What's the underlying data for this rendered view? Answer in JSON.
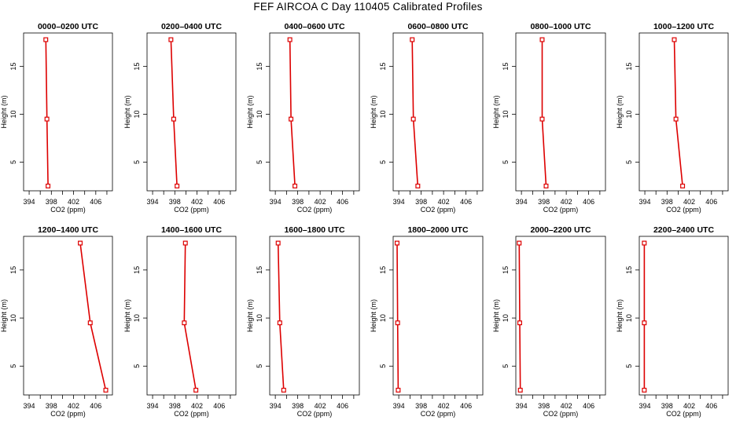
{
  "title": "FEF AIRCOA C  Day 110405  Calibrated Profiles",
  "colors": {
    "profile_line": "#dd0000",
    "axis": "#000000"
  },
  "chart_data": [
    {
      "type": "line",
      "title": "0000–0200 UTC",
      "xlabel": "CO2 (ppm)",
      "ylabel": "Height (m)",
      "xlim": [
        393,
        409
      ],
      "ylim": [
        2,
        18.5
      ],
      "xticks": [
        394,
        398,
        402,
        406
      ],
      "yticks": [
        5,
        10,
        15
      ],
      "x": [
        397.0,
        397.2,
        397.4
      ],
      "y": [
        17.8,
        9.5,
        2.5
      ]
    },
    {
      "type": "line",
      "title": "0200–0400 UTC",
      "xlabel": "CO2 (ppm)",
      "ylabel": "Height (m)",
      "xlim": [
        393,
        409
      ],
      "ylim": [
        2,
        18.5
      ],
      "xticks": [
        394,
        398,
        402,
        406
      ],
      "yticks": [
        5,
        10,
        15
      ],
      "x": [
        397.3,
        397.8,
        398.4
      ],
      "y": [
        17.8,
        9.5,
        2.5
      ]
    },
    {
      "type": "line",
      "title": "0400–0600 UTC",
      "xlabel": "CO2 (ppm)",
      "ylabel": "Height (m)",
      "xlim": [
        393,
        409
      ],
      "ylim": [
        2,
        18.5
      ],
      "xticks": [
        394,
        398,
        402,
        406
      ],
      "yticks": [
        5,
        10,
        15
      ],
      "x": [
        396.6,
        396.8,
        397.5
      ],
      "y": [
        17.8,
        9.5,
        2.5
      ]
    },
    {
      "type": "line",
      "title": "0600–0800 UTC",
      "xlabel": "CO2 (ppm)",
      "ylabel": "Height (m)",
      "xlim": [
        393,
        409
      ],
      "ylim": [
        2,
        18.5
      ],
      "xticks": [
        394,
        398,
        402,
        406
      ],
      "yticks": [
        5,
        10,
        15
      ],
      "x": [
        396.4,
        396.6,
        397.4
      ],
      "y": [
        17.8,
        9.5,
        2.5
      ]
    },
    {
      "type": "line",
      "title": "0800–1000 UTC",
      "xlabel": "CO2 (ppm)",
      "ylabel": "Height (m)",
      "xlim": [
        393,
        409
      ],
      "ylim": [
        2,
        18.5
      ],
      "xticks": [
        394,
        398,
        402,
        406
      ],
      "yticks": [
        5,
        10,
        15
      ],
      "x": [
        397.7,
        397.7,
        398.4
      ],
      "y": [
        17.8,
        9.5,
        2.5
      ]
    },
    {
      "type": "line",
      "title": "1000–1200 UTC",
      "xlabel": "CO2 (ppm)",
      "ylabel": "Height (m)",
      "xlim": [
        393,
        409
      ],
      "ylim": [
        2,
        18.5
      ],
      "xticks": [
        394,
        398,
        402,
        406
      ],
      "yticks": [
        5,
        10,
        15
      ],
      "x": [
        399.3,
        399.6,
        400.8
      ],
      "y": [
        17.8,
        9.5,
        2.5
      ]
    },
    {
      "type": "line",
      "title": "1200–1400 UTC",
      "xlabel": "CO2 (ppm)",
      "ylabel": "Height (m)",
      "xlim": [
        393,
        409
      ],
      "ylim": [
        2,
        18.5
      ],
      "xticks": [
        394,
        398,
        402,
        406
      ],
      "yticks": [
        5,
        10,
        15
      ],
      "x": [
        403.2,
        405.0,
        407.8
      ],
      "y": [
        17.8,
        9.5,
        2.5
      ]
    },
    {
      "type": "line",
      "title": "1400–1600 UTC",
      "xlabel": "CO2 (ppm)",
      "ylabel": "Height (m)",
      "xlim": [
        393,
        409
      ],
      "ylim": [
        2,
        18.5
      ],
      "xticks": [
        394,
        398,
        402,
        406
      ],
      "yticks": [
        5,
        10,
        15
      ],
      "x": [
        399.9,
        399.7,
        401.8
      ],
      "y": [
        17.8,
        9.5,
        2.5
      ]
    },
    {
      "type": "line",
      "title": "1600–1800 UTC",
      "xlabel": "CO2 (ppm)",
      "ylabel": "Height (m)",
      "xlim": [
        393,
        409
      ],
      "ylim": [
        2,
        18.5
      ],
      "xticks": [
        394,
        398,
        402,
        406
      ],
      "yticks": [
        5,
        10,
        15
      ],
      "x": [
        394.5,
        394.8,
        395.5
      ],
      "y": [
        17.8,
        9.5,
        2.5
      ]
    },
    {
      "type": "line",
      "title": "1800–2000 UTC",
      "xlabel": "CO2 (ppm)",
      "ylabel": "Height (m)",
      "xlim": [
        393,
        409
      ],
      "ylim": [
        2,
        18.5
      ],
      "xticks": [
        394,
        398,
        402,
        406
      ],
      "yticks": [
        5,
        10,
        15
      ],
      "x": [
        393.7,
        393.8,
        393.9
      ],
      "y": [
        17.8,
        9.5,
        2.5
      ]
    },
    {
      "type": "line",
      "title": "2000–2200 UTC",
      "xlabel": "CO2 (ppm)",
      "ylabel": "Height (m)",
      "xlim": [
        393,
        409
      ],
      "ylim": [
        2,
        18.5
      ],
      "xticks": [
        394,
        398,
        402,
        406
      ],
      "yticks": [
        5,
        10,
        15
      ],
      "x": [
        393.6,
        393.7,
        393.8
      ],
      "y": [
        17.8,
        9.5,
        2.5
      ]
    },
    {
      "type": "line",
      "title": "2200–2400 UTC",
      "xlabel": "CO2 (ppm)",
      "ylabel": "Height (m)",
      "xlim": [
        393,
        409
      ],
      "ylim": [
        2,
        18.5
      ],
      "xticks": [
        394,
        398,
        402,
        406
      ],
      "yticks": [
        5,
        10,
        15
      ],
      "x": [
        393.9,
        393.9,
        393.9
      ],
      "y": [
        17.8,
        9.5,
        2.5
      ]
    }
  ]
}
